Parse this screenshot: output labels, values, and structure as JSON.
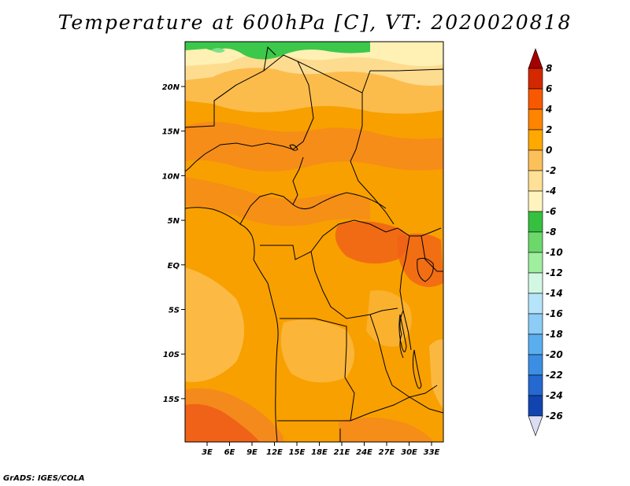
{
  "title": "Temperature at 600hPa [C], VT: 2020020818",
  "credit": "GrADS: IGES/COLA",
  "lat_labels": [
    "20N",
    "15N",
    "10N",
    "5N",
    "EQ",
    "5S",
    "10S",
    "15S"
  ],
  "lon_labels": [
    "3E",
    "6E",
    "9E",
    "12E",
    "15E",
    "18E",
    "21E",
    "24E",
    "27E",
    "30E",
    "33E"
  ],
  "colorbar": {
    "levels": [
      "8",
      "6",
      "4",
      "2",
      "0",
      "-2",
      "-4",
      "-6",
      "-8",
      "-10",
      "-12",
      "-14",
      "-16",
      "-18",
      "-20",
      "-22",
      "-24",
      "-26"
    ],
    "colors": [
      "#a50000",
      "#d42800",
      "#f85800",
      "#ff8400",
      "#ffa800",
      "#fcc05a",
      "#fee096",
      "#fff4c0",
      "#36c040",
      "#6cd86c",
      "#a0eea0",
      "#d2f8e4",
      "#b6e4fa",
      "#8cccf6",
      "#5aaeee",
      "#3c8ee4",
      "#2468d0",
      "#1244b0",
      "#081c7c"
    ]
  },
  "map_colors": {
    "orange": "#f8a000",
    "dark_orange": "#f58a1c",
    "red_orange": "#f06218",
    "light_orange": "#fcbc4c",
    "pale_yellow": "#fddc90",
    "cream": "#fff0b4",
    "green": "#3cc84a",
    "light_green": "#7ee08a"
  }
}
